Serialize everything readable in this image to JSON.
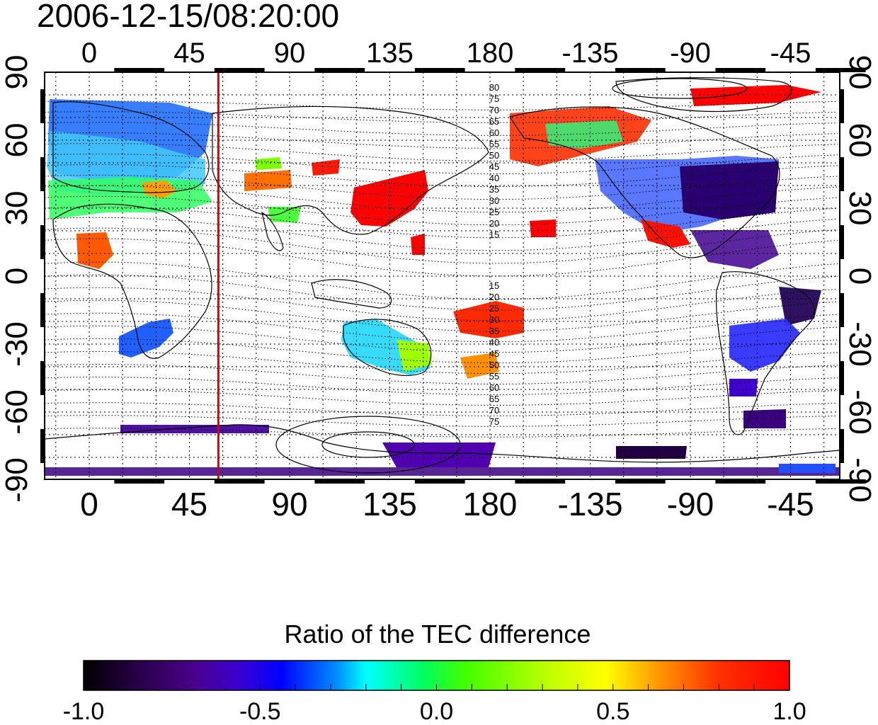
{
  "title": "2006-12-15/08:20:00",
  "map": {
    "type": "world-map-heatmap",
    "projection": "equirectangular",
    "lon_ticks_labels": [
      "0",
      "45",
      "90",
      "135",
      "180",
      "-135",
      "-90",
      "-45"
    ],
    "lat_ticks_labels": [
      "90",
      "60",
      "30",
      "0",
      "-30",
      "-60",
      "-90"
    ],
    "grid": true,
    "marker_line_lon": 58,
    "marker_line_color": "#e00000",
    "magnetic_contour_labels_north": [
      "80",
      "75",
      "70",
      "65",
      "60",
      "55",
      "50",
      "45",
      "40",
      "35",
      "30",
      "25",
      "20",
      "15"
    ],
    "magnetic_contour_labels_south": [
      "15",
      "20",
      "25",
      "30",
      "35",
      "40",
      "45",
      "50",
      "55",
      "60",
      "65",
      "70",
      "75"
    ]
  },
  "colorbar": {
    "title": "Ratio of the TEC difference",
    "tick_labels": [
      "-1.0",
      "-0.5",
      "0.0",
      "0.5",
      "1.0"
    ],
    "range": [
      -1.0,
      1.0
    ]
  },
  "colors": {
    "colormap": [
      "#000000",
      "#2a004a",
      "#4b0090",
      "#3a00d0",
      "#0000ff",
      "#0090ff",
      "#00ffff",
      "#00ff60",
      "#40ff00",
      "#c0ff00",
      "#ffff00",
      "#ff9000",
      "#ff3000",
      "#ff0000"
    ],
    "marker": "#e00000"
  }
}
